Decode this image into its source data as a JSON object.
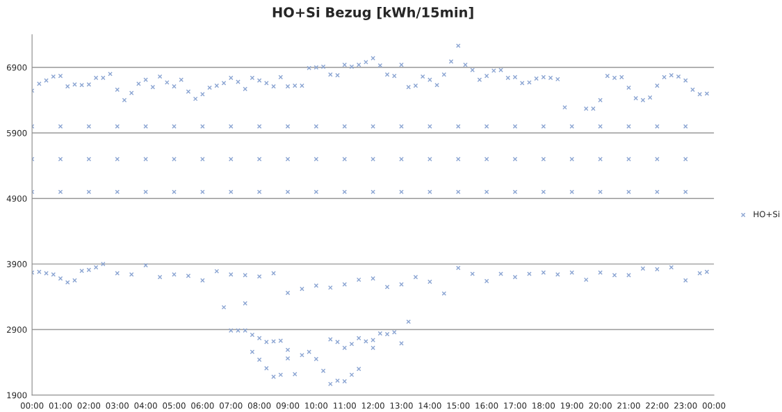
{
  "chart_data": {
    "type": "scatter",
    "title": "HO+Si Bezug [kWh/15min]",
    "xlim": [
      0,
      24
    ],
    "xticks": [
      {
        "value": 0,
        "label": "00:00"
      },
      {
        "value": 1,
        "label": "01:00"
      },
      {
        "value": 2,
        "label": "02:00"
      },
      {
        "value": 3,
        "label": "03:00"
      },
      {
        "value": 4,
        "label": "04:00"
      },
      {
        "value": 5,
        "label": "05:00"
      },
      {
        "value": 6,
        "label": "06:00"
      },
      {
        "value": 7,
        "label": "07:00"
      },
      {
        "value": 8,
        "label": "08:00"
      },
      {
        "value": 9,
        "label": "09:00"
      },
      {
        "value": 10,
        "label": "10:00"
      },
      {
        "value": 11,
        "label": "11:00"
      },
      {
        "value": 12,
        "label": "12:00"
      },
      {
        "value": 13,
        "label": "13:00"
      },
      {
        "value": 14,
        "label": "14:00"
      },
      {
        "value": 15,
        "label": "15:00"
      },
      {
        "value": 16,
        "label": "16:00"
      },
      {
        "value": 17,
        "label": "17:00"
      },
      {
        "value": 18,
        "label": "18:00"
      },
      {
        "value": 19,
        "label": "19:00"
      },
      {
        "value": 20,
        "label": "20:00"
      },
      {
        "value": 21,
        "label": "21:00"
      },
      {
        "value": 22,
        "label": "22:00"
      },
      {
        "value": 23,
        "label": "23:00"
      },
      {
        "value": 24,
        "label": "00:00"
      }
    ],
    "ylim": [
      1900,
      7400
    ],
    "yticks": [
      1900,
      2900,
      3900,
      4900,
      5900,
      6900
    ],
    "grid": "y",
    "legend": "right",
    "marker": "cross",
    "series": [
      {
        "name": "HO+Si",
        "color": "#8aa4d2",
        "x": [
          0,
          0.25,
          0.5,
          0.75,
          1,
          1.25,
          1.5,
          1.75,
          2,
          2.25,
          2.5,
          2.75,
          3,
          3.25,
          3.5,
          3.75,
          4,
          4.25,
          4.5,
          4.75,
          5,
          5.25,
          5.5,
          5.75,
          6,
          6.25,
          6.5,
          6.75,
          7,
          7.25,
          7.5,
          7.75,
          8,
          8.25,
          8.5,
          8.75,
          9,
          9.25,
          9.5,
          9.75,
          10,
          10.25,
          10.5,
          10.75,
          11,
          11.25,
          11.5,
          11.75,
          12,
          12.25,
          12.5,
          12.75,
          13,
          13.25,
          13.5,
          13.75,
          14,
          14.25,
          14.5,
          14.75,
          15,
          15.25,
          15.5,
          15.75,
          16,
          16.25,
          16.5,
          16.75,
          17,
          17.25,
          17.5,
          17.75,
          18,
          18.25,
          18.5,
          18.75,
          19.5,
          19.75,
          20,
          20.25,
          20.5,
          20.75,
          21,
          21.25,
          21.5,
          21.75,
          22,
          22.25,
          22.5,
          22.75,
          23,
          23.25,
          23.5,
          23.75,
          0,
          0.25,
          0.5,
          0.75,
          1,
          1.25,
          1.5,
          1.75,
          2,
          2.25,
          2.5,
          3,
          3.5,
          4,
          4.5,
          5,
          5.5,
          6,
          6.5,
          7,
          7.5,
          8,
          8.5,
          9,
          9.5,
          10,
          10.5,
          11,
          11.5,
          12,
          12.5,
          13,
          13.5,
          14,
          14.5,
          15,
          15.5,
          16,
          16.5,
          17,
          17.5,
          18,
          18.5,
          19,
          19.5,
          20,
          20.5,
          21,
          21.5,
          22,
          22.5,
          23,
          23.5,
          23.75,
          6.75,
          7.5,
          7,
          7.25,
          7.5,
          7.75,
          8,
          8.25,
          8.5,
          8.75,
          7.75,
          8,
          8.25,
          8.5,
          8.75,
          9,
          9,
          9.25,
          9.5,
          9.75,
          10,
          10.25,
          10.5,
          10.75,
          11,
          11.25,
          11.5,
          10.5,
          10.75,
          11,
          11.25,
          11.5,
          11.75,
          12,
          12,
          12.25,
          12.5,
          12.75,
          13,
          13.25,
          0,
          1,
          2,
          3,
          4,
          5,
          6,
          7,
          8,
          9,
          10,
          11,
          12,
          13,
          14,
          15,
          16,
          17,
          18,
          19,
          20,
          21,
          22,
          23,
          0,
          1,
          2,
          3,
          4,
          5,
          6,
          7,
          8,
          9,
          10,
          11,
          12,
          13,
          14,
          15,
          16,
          17,
          18,
          19,
          20,
          21,
          22,
          23,
          0,
          1,
          2,
          3,
          4,
          5,
          6,
          7,
          8,
          9,
          10,
          11,
          12,
          13,
          14,
          15,
          16,
          17,
          18,
          19,
          20,
          21,
          22,
          23
        ],
        "values": [
          6545,
          6650,
          6700,
          6760,
          6770,
          6610,
          6640,
          6630,
          6640,
          6740,
          6740,
          6800,
          6560,
          6400,
          6510,
          6650,
          6710,
          6600,
          6760,
          6670,
          6610,
          6710,
          6530,
          6420,
          6490,
          6590,
          6620,
          6660,
          6740,
          6680,
          6570,
          6740,
          6700,
          6660,
          6610,
          6750,
          6610,
          6620,
          6620,
          6890,
          6900,
          6910,
          6790,
          6780,
          6940,
          6910,
          6940,
          6980,
          7040,
          6930,
          6790,
          6770,
          6940,
          6600,
          6620,
          6760,
          6710,
          6630,
          6790,
          6990,
          7230,
          6940,
          6860,
          6710,
          6770,
          6850,
          6860,
          6740,
          6750,
          6660,
          6670,
          6730,
          6750,
          6740,
          6720,
          6290,
          6270,
          6270,
          6400,
          6770,
          6740,
          6750,
          6590,
          6430,
          6400,
          6440,
          6620,
          6750,
          6780,
          6760,
          6700,
          6560,
          6490,
          6500,
          3770,
          3780,
          3760,
          3740,
          3680,
          3620,
          3650,
          3795,
          3810,
          3850,
          3900,
          3760,
          3740,
          3880,
          3700,
          3740,
          3720,
          3650,
          3790,
          3740,
          3730,
          3710,
          3760,
          3460,
          3520,
          3570,
          3540,
          3590,
          3660,
          3680,
          3550,
          3590,
          3700,
          3630,
          3450,
          3840,
          3750,
          3640,
          3750,
          3700,
          3750,
          3770,
          3740,
          3770,
          3660,
          3770,
          3730,
          3730,
          3830,
          3820,
          3850,
          3650,
          3760,
          3780,
          3240,
          3300,
          2885,
          2885,
          2885,
          2820,
          2770,
          2710,
          2720,
          2730,
          2560,
          2440,
          2310,
          2180,
          2210,
          2590,
          2460,
          2220,
          2510,
          2560,
          2450,
          2270,
          2070,
          2120,
          2110,
          2210,
          2300,
          2750,
          2710,
          2620,
          2680,
          2770,
          2720,
          2740,
          2620,
          2840,
          2830,
          2860,
          2690,
          3020,
          6000,
          6000,
          6000,
          6000,
          6000,
          6000,
          6000,
          6000,
          6000,
          6000,
          6000,
          6000,
          6000,
          6000,
          6000,
          6000,
          6000,
          6000,
          6000,
          6000,
          6000,
          6000,
          6000,
          6000,
          5500,
          5500,
          5500,
          5500,
          5500,
          5500,
          5500,
          5500,
          5500,
          5500,
          5500,
          5500,
          5500,
          5500,
          5500,
          5500,
          5500,
          5500,
          5500,
          5500,
          5500,
          5500,
          5500,
          5500,
          5000,
          5000,
          5000,
          5000,
          5000,
          5000,
          5000,
          5000,
          5000,
          5000,
          5000,
          5000,
          5000,
          5000,
          5000,
          5000,
          5000,
          5000,
          5000,
          5000,
          5000,
          5000,
          5000,
          5000
        ]
      }
    ]
  }
}
